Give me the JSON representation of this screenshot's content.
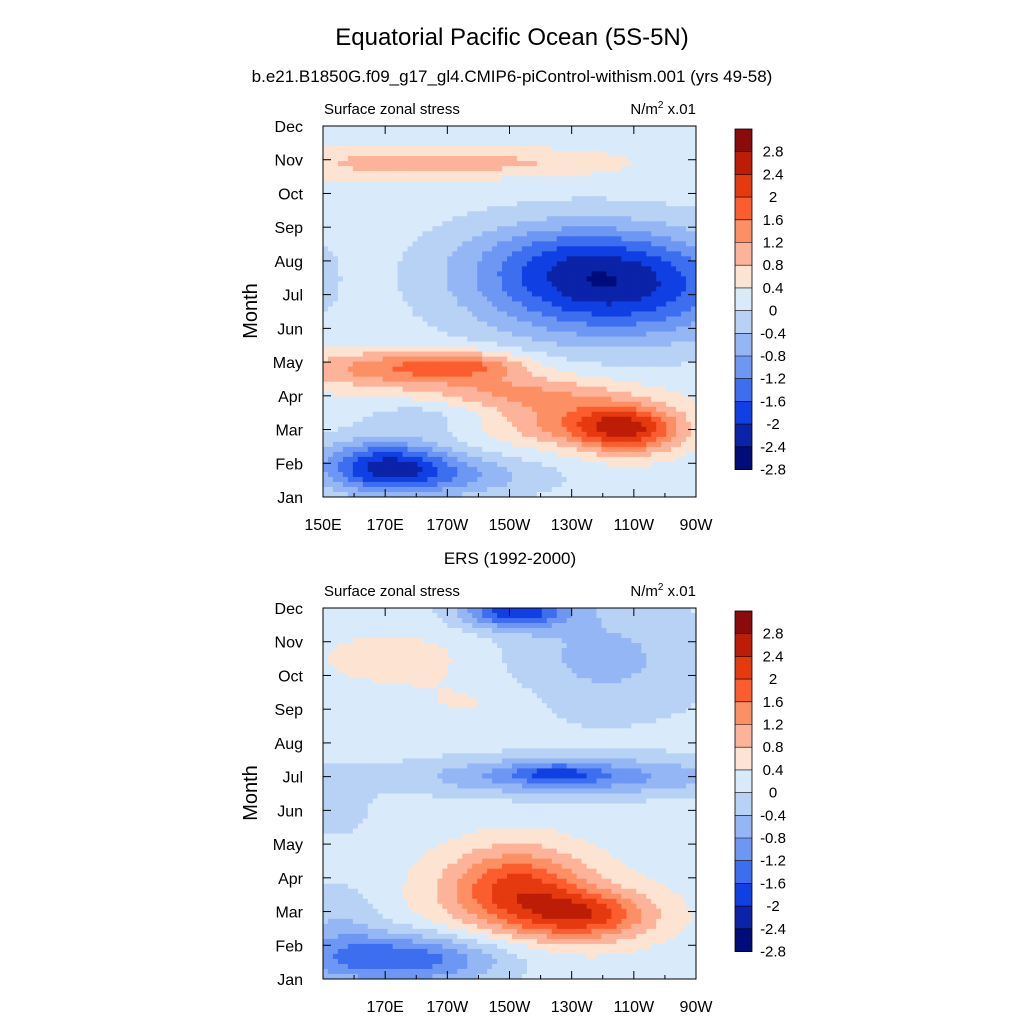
{
  "figure": {
    "title": "Equatorial Pacific Ocean (5S-5N)"
  },
  "color_scale": {
    "levels": [
      "2.8",
      "2.4",
      "2",
      "1.6",
      "1.2",
      "0.8",
      "0.4",
      "0",
      "-0.4",
      "-0.8",
      "-1.2",
      "-1.6",
      "-2",
      "-2.4",
      "-2.8"
    ],
    "colors": [
      "#8b0a0a",
      "#bd1d06",
      "#e5390f",
      "#fb5d2f",
      "#fc8f64",
      "#fdb29a",
      "#fde4d2",
      "#d9eafb",
      "#b8d2f5",
      "#95b6f4",
      "#6d97f3",
      "#3d6ef0",
      "#1040e3",
      "#0a23a8",
      "#000c7a"
    ]
  },
  "chart_data": [
    {
      "type": "heatmap",
      "title": "b.e21.B1850G.f09_g17_gl4.CMIP6-piControl-withism.001 (yrs 49-58)",
      "variable_label": "Surface zonal stress",
      "units_label": "N/m",
      "units_sup": "2",
      "units_suffix": " x.01",
      "ylabel": "Month",
      "xlabel": "",
      "x_tick_labels": [
        "150E",
        "170E",
        "170W",
        "150W",
        "130W",
        "110W",
        "90W"
      ],
      "y_tick_labels": [
        "Jan",
        "Feb",
        "Mar",
        "Apr",
        "May",
        "Jun",
        "Jul",
        "Aug",
        "Sep",
        "Oct",
        "Nov",
        "Dec"
      ],
      "x_range": [
        150,
        270
      ],
      "y_range": [
        1,
        12
      ],
      "background": 0.2,
      "blobs": [
        {
          "x": 163,
          "y": 10.9,
          "sx": 25,
          "sy": 0.35,
          "a": 0.5
        },
        {
          "x": 190,
          "y": 10.9,
          "sx": 22,
          "sy": 0.3,
          "a": 0.45
        },
        {
          "x": 225,
          "y": 10.9,
          "sx": 20,
          "sy": 0.3,
          "a": 0.4
        },
        {
          "x": 150,
          "y": 7.5,
          "sx": 6,
          "sy": 1.2,
          "a": -0.25
        },
        {
          "x": 243,
          "y": 7.2,
          "sx": 30,
          "sy": 1.1,
          "a": -2.3
        },
        {
          "x": 228,
          "y": 8.2,
          "sx": 25,
          "sy": 0.8,
          "a": -0.7
        },
        {
          "x": 165,
          "y": 4.8,
          "sx": 20,
          "sy": 0.4,
          "a": 1.0
        },
        {
          "x": 195,
          "y": 4.9,
          "sx": 15,
          "sy": 0.3,
          "a": 1.3
        },
        {
          "x": 210,
          "y": 4.1,
          "sx": 25,
          "sy": 0.4,
          "a": 1.0
        },
        {
          "x": 248,
          "y": 3.0,
          "sx": 12,
          "sy": 0.5,
          "a": 1.9
        },
        {
          "x": 230,
          "y": 3.2,
          "sx": 20,
          "sy": 0.5,
          "a": 1.0
        },
        {
          "x": 170,
          "y": 1.9,
          "sx": 15,
          "sy": 0.55,
          "a": -2.2
        },
        {
          "x": 195,
          "y": 1.6,
          "sx": 20,
          "sy": 0.45,
          "a": -0.8
        },
        {
          "x": 185,
          "y": 3.5,
          "sx": 15,
          "sy": 0.4,
          "a": -0.5
        }
      ]
    },
    {
      "type": "heatmap",
      "title": "ERS (1992-2000)",
      "variable_label": "Surface zonal stress",
      "units_label": "N/m",
      "units_sup": "2",
      "units_suffix": " x.01",
      "ylabel": "Month",
      "xlabel": "",
      "x_tick_labels": [
        "",
        "170E",
        "170W",
        "150W",
        "130W",
        "110W",
        "90W"
      ],
      "y_tick_labels": [
        "Jan",
        "Feb",
        "Mar",
        "Apr",
        "May",
        "Jun",
        "Jul",
        "Aug",
        "Sep",
        "Oct",
        "Nov",
        "Dec"
      ],
      "x_range": [
        150,
        270
      ],
      "y_range": [
        1,
        12
      ],
      "background": 0.2,
      "blobs": [
        {
          "x": 212,
          "y": 11.9,
          "sx": 12,
          "sy": 0.35,
          "a": -2.0
        },
        {
          "x": 240,
          "y": 10.5,
          "sx": 25,
          "sy": 1.3,
          "a": -0.7
        },
        {
          "x": 175,
          "y": 10.5,
          "sx": 20,
          "sy": 0.6,
          "a": 0.4
        },
        {
          "x": 200,
          "y": 9.2,
          "sx": 15,
          "sy": 0.5,
          "a": 0.3
        },
        {
          "x": 230,
          "y": 7.0,
          "sx": 35,
          "sy": 0.4,
          "a": -1.3
        },
        {
          "x": 225,
          "y": 7.1,
          "sx": 10,
          "sy": 0.2,
          "a": -0.8
        },
        {
          "x": 212,
          "y": 3.8,
          "sx": 15,
          "sy": 0.8,
          "a": 1.5
        },
        {
          "x": 235,
          "y": 2.9,
          "sx": 15,
          "sy": 0.5,
          "a": 1.6
        },
        {
          "x": 215,
          "y": 3.0,
          "sx": 25,
          "sy": 1.1,
          "a": 0.6
        },
        {
          "x": 175,
          "y": 1.6,
          "sx": 25,
          "sy": 0.55,
          "a": -1.8
        },
        {
          "x": 155,
          "y": 2.8,
          "sx": 10,
          "sy": 0.8,
          "a": -0.5
        },
        {
          "x": 155,
          "y": 6.2,
          "sx": 8,
          "sy": 0.8,
          "a": -0.4
        }
      ]
    }
  ]
}
